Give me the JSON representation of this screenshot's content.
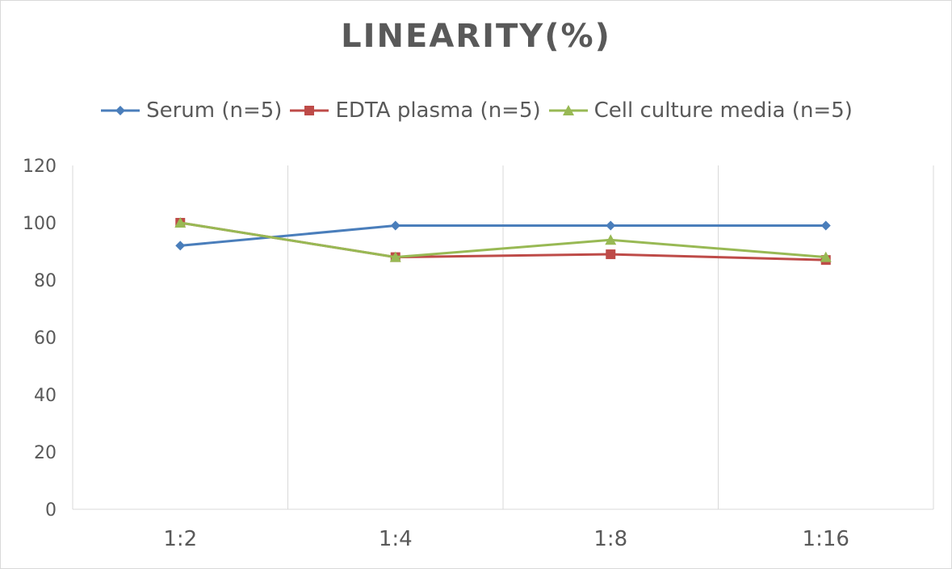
{
  "chart_data": {
    "type": "line",
    "title": "LINEARITY(%)",
    "categories": [
      "1:2",
      "1:4",
      "1:8",
      "1:16"
    ],
    "ylim": [
      0,
      120
    ],
    "yticks": [
      0,
      20,
      40,
      60,
      80,
      100,
      120
    ],
    "grid": "vertical",
    "legend_position": "top",
    "series": [
      {
        "name": "Serum (n=5)",
        "values": [
          92,
          99,
          99,
          99
        ],
        "color": "#4a7ebb",
        "marker": "diamond"
      },
      {
        "name": "EDTA plasma (n=5)",
        "values": [
          100,
          88,
          89,
          87
        ],
        "color": "#be4b48",
        "marker": "square"
      },
      {
        "name": "Cell culture media (n=5)",
        "values": [
          100,
          88,
          94,
          88
        ],
        "color": "#98b954",
        "marker": "triangle"
      }
    ]
  }
}
